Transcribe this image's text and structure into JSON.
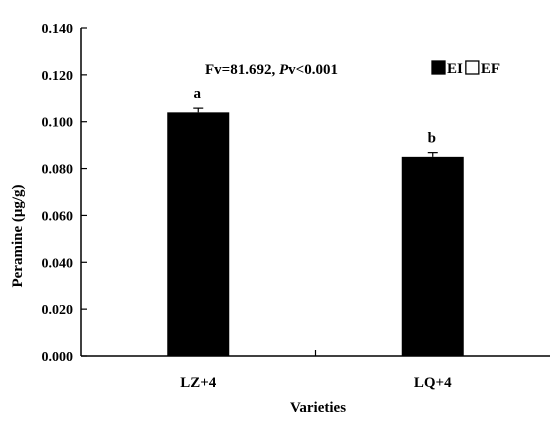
{
  "chart_data": {
    "type": "bar",
    "xlabel": "Varieties",
    "ylabel": "Peramine (μg/g)",
    "ylim": [
      0,
      0.14
    ],
    "y_ticks": [
      "0.000",
      "0.020",
      "0.040",
      "0.060",
      "0.080",
      "0.100",
      "0.120",
      "0.140"
    ],
    "categories": [
      "LZ+4",
      "LQ+4"
    ],
    "series": [
      {
        "name": "EI",
        "values": [
          0.104,
          0.085
        ],
        "errors": [
          0.0018,
          0.0018
        ],
        "color": "#000000"
      },
      {
        "name": "EF",
        "values": [
          null,
          null
        ],
        "color": "#ffffff"
      }
    ],
    "sig_letters": [
      "a",
      "b"
    ],
    "annotation": {
      "prefix": "Fv=81.692, ",
      "p_label": "P",
      "suffix": "v<0.001"
    },
    "legend_position": "top-right",
    "grid": false
  }
}
